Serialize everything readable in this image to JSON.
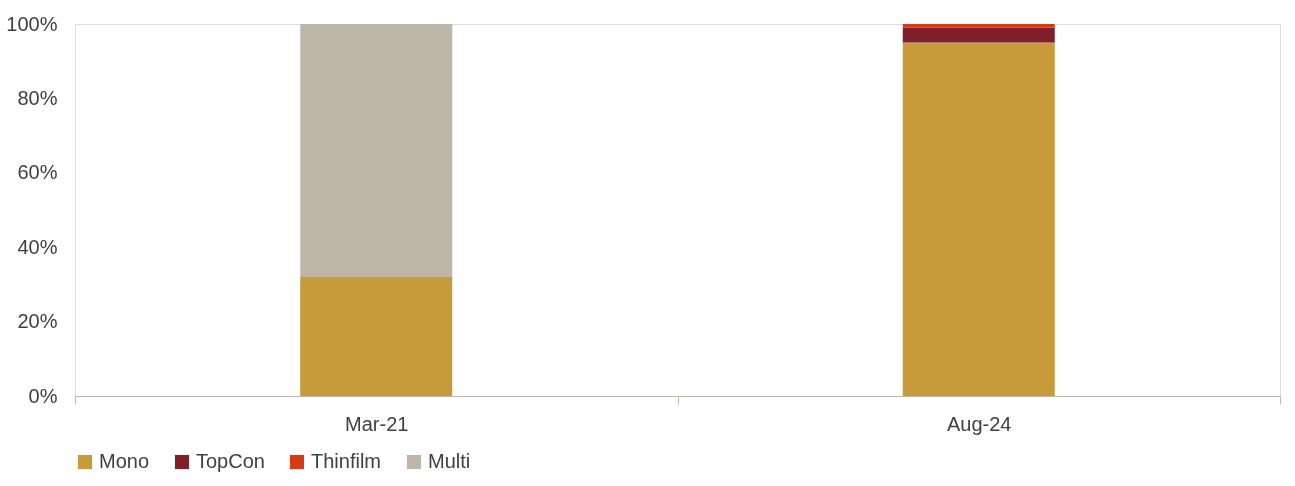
{
  "chart_data": {
    "type": "bar",
    "stacked": true,
    "categories": [
      "Mar-21",
      "Aug-24"
    ],
    "series": [
      {
        "name": "Mono",
        "color": "#c79b3a",
        "values": [
          32,
          95
        ]
      },
      {
        "name": "TopCon",
        "color": "#7f1f2a",
        "values": [
          0,
          4
        ]
      },
      {
        "name": "Thinfilm",
        "color": "#d73b16",
        "values": [
          0,
          1
        ]
      },
      {
        "name": "Multi",
        "color": "#bfb5a8",
        "values": [
          68,
          0
        ]
      }
    ],
    "ylim": [
      0,
      100
    ],
    "yticks": [
      {
        "value": 0,
        "label": "0%"
      },
      {
        "value": 20,
        "label": "20%"
      },
      {
        "value": 40,
        "label": "40%"
      },
      {
        "value": 60,
        "label": "60%"
      },
      {
        "value": 80,
        "label": "80%"
      },
      {
        "value": 100,
        "label": "100%"
      }
    ],
    "grid": false,
    "legend": "bottom"
  }
}
